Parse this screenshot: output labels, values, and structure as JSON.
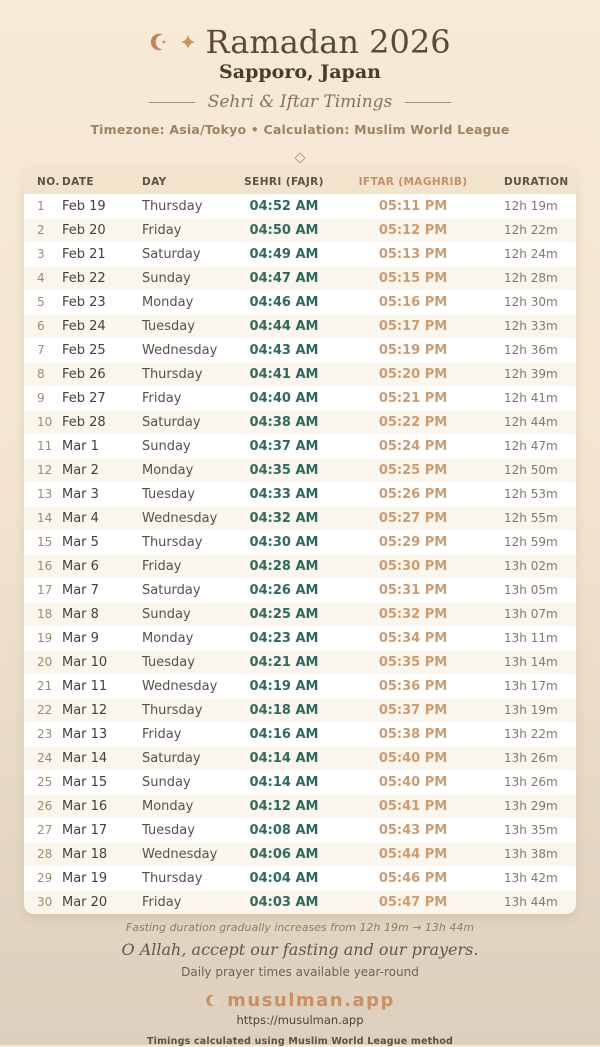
{
  "header": {
    "title": "Ramadan 2026",
    "location": "Sapporo, Japan",
    "section_title": "Sehri & Iftar Timings",
    "meta": "Timezone: Asia/Tokyo • Calculation: Muslim World League"
  },
  "table": {
    "columns": [
      "NO.",
      "DATE",
      "DAY",
      "SEHRI (FAJR)",
      "IFTAR (MAGHRIB)",
      "DURATION"
    ],
    "rows": [
      {
        "no": "1",
        "date": "Feb 19",
        "day": "Thursday",
        "sehri": "04:52 AM",
        "iftar": "05:11 PM",
        "duration": "12h 19m"
      },
      {
        "no": "2",
        "date": "Feb 20",
        "day": "Friday",
        "sehri": "04:50 AM",
        "iftar": "05:12 PM",
        "duration": "12h 22m"
      },
      {
        "no": "3",
        "date": "Feb 21",
        "day": "Saturday",
        "sehri": "04:49 AM",
        "iftar": "05:13 PM",
        "duration": "12h 24m"
      },
      {
        "no": "4",
        "date": "Feb 22",
        "day": "Sunday",
        "sehri": "04:47 AM",
        "iftar": "05:15 PM",
        "duration": "12h 28m"
      },
      {
        "no": "5",
        "date": "Feb 23",
        "day": "Monday",
        "sehri": "04:46 AM",
        "iftar": "05:16 PM",
        "duration": "12h 30m"
      },
      {
        "no": "6",
        "date": "Feb 24",
        "day": "Tuesday",
        "sehri": "04:44 AM",
        "iftar": "05:17 PM",
        "duration": "12h 33m"
      },
      {
        "no": "7",
        "date": "Feb 25",
        "day": "Wednesday",
        "sehri": "04:43 AM",
        "iftar": "05:19 PM",
        "duration": "12h 36m"
      },
      {
        "no": "8",
        "date": "Feb 26",
        "day": "Thursday",
        "sehri": "04:41 AM",
        "iftar": "05:20 PM",
        "duration": "12h 39m"
      },
      {
        "no": "9",
        "date": "Feb 27",
        "day": "Friday",
        "sehri": "04:40 AM",
        "iftar": "05:21 PM",
        "duration": "12h 41m"
      },
      {
        "no": "10",
        "date": "Feb 28",
        "day": "Saturday",
        "sehri": "04:38 AM",
        "iftar": "05:22 PM",
        "duration": "12h 44m"
      },
      {
        "no": "11",
        "date": "Mar 1",
        "day": "Sunday",
        "sehri": "04:37 AM",
        "iftar": "05:24 PM",
        "duration": "12h 47m"
      },
      {
        "no": "12",
        "date": "Mar 2",
        "day": "Monday",
        "sehri": "04:35 AM",
        "iftar": "05:25 PM",
        "duration": "12h 50m"
      },
      {
        "no": "13",
        "date": "Mar 3",
        "day": "Tuesday",
        "sehri": "04:33 AM",
        "iftar": "05:26 PM",
        "duration": "12h 53m"
      },
      {
        "no": "14",
        "date": "Mar 4",
        "day": "Wednesday",
        "sehri": "04:32 AM",
        "iftar": "05:27 PM",
        "duration": "12h 55m"
      },
      {
        "no": "15",
        "date": "Mar 5",
        "day": "Thursday",
        "sehri": "04:30 AM",
        "iftar": "05:29 PM",
        "duration": "12h 59m"
      },
      {
        "no": "16",
        "date": "Mar 6",
        "day": "Friday",
        "sehri": "04:28 AM",
        "iftar": "05:30 PM",
        "duration": "13h 02m"
      },
      {
        "no": "17",
        "date": "Mar 7",
        "day": "Saturday",
        "sehri": "04:26 AM",
        "iftar": "05:31 PM",
        "duration": "13h 05m"
      },
      {
        "no": "18",
        "date": "Mar 8",
        "day": "Sunday",
        "sehri": "04:25 AM",
        "iftar": "05:32 PM",
        "duration": "13h 07m"
      },
      {
        "no": "19",
        "date": "Mar 9",
        "day": "Monday",
        "sehri": "04:23 AM",
        "iftar": "05:34 PM",
        "duration": "13h 11m"
      },
      {
        "no": "20",
        "date": "Mar 10",
        "day": "Tuesday",
        "sehri": "04:21 AM",
        "iftar": "05:35 PM",
        "duration": "13h 14m"
      },
      {
        "no": "21",
        "date": "Mar 11",
        "day": "Wednesday",
        "sehri": "04:19 AM",
        "iftar": "05:36 PM",
        "duration": "13h 17m"
      },
      {
        "no": "22",
        "date": "Mar 12",
        "day": "Thursday",
        "sehri": "04:18 AM",
        "iftar": "05:37 PM",
        "duration": "13h 19m"
      },
      {
        "no": "23",
        "date": "Mar 13",
        "day": "Friday",
        "sehri": "04:16 AM",
        "iftar": "05:38 PM",
        "duration": "13h 22m"
      },
      {
        "no": "24",
        "date": "Mar 14",
        "day": "Saturday",
        "sehri": "04:14 AM",
        "iftar": "05:40 PM",
        "duration": "13h 26m"
      },
      {
        "no": "25",
        "date": "Mar 15",
        "day": "Sunday",
        "sehri": "04:14 AM",
        "iftar": "05:40 PM",
        "duration": "13h 26m"
      },
      {
        "no": "26",
        "date": "Mar 16",
        "day": "Monday",
        "sehri": "04:12 AM",
        "iftar": "05:41 PM",
        "duration": "13h 29m"
      },
      {
        "no": "27",
        "date": "Mar 17",
        "day": "Tuesday",
        "sehri": "04:08 AM",
        "iftar": "05:43 PM",
        "duration": "13h 35m"
      },
      {
        "no": "28",
        "date": "Mar 18",
        "day": "Wednesday",
        "sehri": "04:06 AM",
        "iftar": "05:44 PM",
        "duration": "13h 38m"
      },
      {
        "no": "29",
        "date": "Mar 19",
        "day": "Thursday",
        "sehri": "04:04 AM",
        "iftar": "05:46 PM",
        "duration": "13h 42m"
      },
      {
        "no": "30",
        "date": "Mar 20",
        "day": "Friday",
        "sehri": "04:03 AM",
        "iftar": "05:47 PM",
        "duration": "13h 44m"
      }
    ]
  },
  "footer": {
    "note": "Fasting duration gradually increases from 12h 19m → 13h 44m",
    "dua": "O Allah, accept our fasting and our prayers.",
    "availability": "Daily prayer times available year-round",
    "brand": "musulman.app",
    "url": "https://musulman.app",
    "method_note": "Timings calculated using Muslim World League method"
  },
  "colors": {
    "accent_tan": "#c08458",
    "brand_orange": "#cb8f60",
    "sehri_green": "#2c6b5d",
    "iftar_tan": "#cd9b6d",
    "title_brown": "#5a4937",
    "header_row_bg": "#f2e3cc",
    "alt_row_bg": "#faf6ed",
    "bg_top": "#f7ead7",
    "bg_bottom": "#ddcfbd"
  }
}
